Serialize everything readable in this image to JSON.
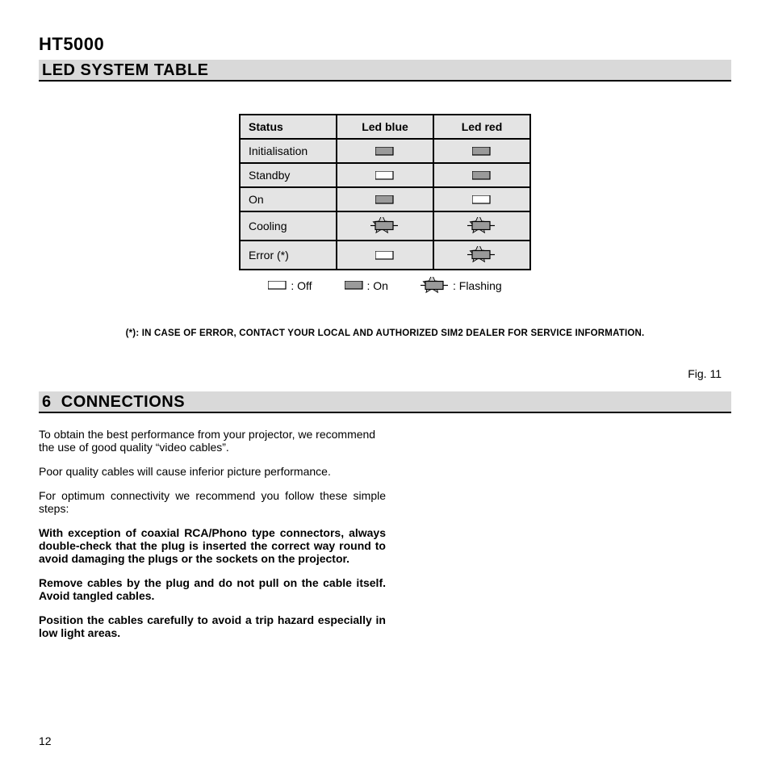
{
  "product_name": "HT5000",
  "sections": {
    "led_table": {
      "title": "LED SYSTEM TABLE"
    },
    "connections": {
      "number": "6",
      "title": "CONNECTIONS"
    }
  },
  "led_table": {
    "columns": [
      "Status",
      "Led blue",
      "Led red"
    ],
    "rows": [
      {
        "status": "Initialisation",
        "blue": "on",
        "red": "on"
      },
      {
        "status": "Standby",
        "blue": "off",
        "red": "on"
      },
      {
        "status": "On",
        "blue": "on",
        "red": "off"
      },
      {
        "status": "Cooling",
        "blue": "flashing",
        "red": "flashing"
      },
      {
        "status": "Error (*)",
        "blue": "off",
        "red": "flashing"
      }
    ],
    "legend": [
      {
        "icon": "off",
        "label": ": Off"
      },
      {
        "icon": "on",
        "label": ": On"
      },
      {
        "icon": "flashing",
        "label": ": Flashing"
      }
    ],
    "icon_colors": {
      "off_fill": "#ffffff",
      "on_fill": "#9a9a9a",
      "flashing_fill": "#9a9a9a",
      "stroke": "#000000"
    }
  },
  "footnote": "(*): IN CASE OF ERROR, CONTACT YOUR LOCAL AND AUTHORIZED SIM2 DEALER FOR SERVICE INFORMATION.",
  "figure_label": "Fig. 11",
  "connections_text": {
    "p1": "To obtain the best performance from your projector, we recommend the use of good quality “video cables”.",
    "p2": "Poor quality cables will cause inferior picture performance.",
    "p3": "For optimum connectivity we recommend you follow these simple steps:",
    "p4": "With exception of coaxial RCA/Phono type connectors, always double-check that the plug is inserted the correct way round to avoid damaging the plugs or the sockets on the projector.",
    "p5": "Remove cables by the plug and do not pull on the cable itself. Avoid tangled cables.",
    "p6": "Position the cables carefully to avoid a trip hazard especially in low light areas."
  },
  "page_number": "12"
}
